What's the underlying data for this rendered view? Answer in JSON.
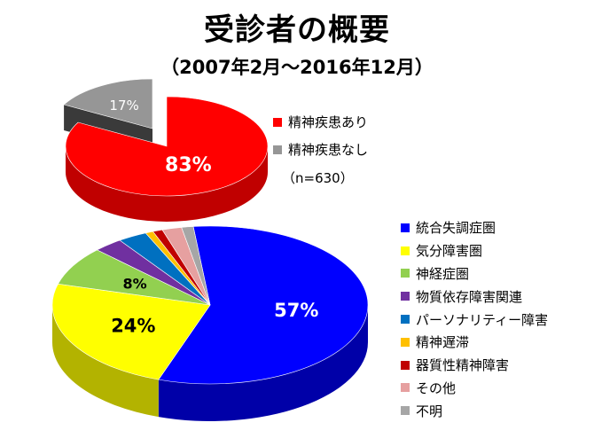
{
  "title": "受診者の概要",
  "subtitle": "（2007年2月～2016年12月）",
  "note": "（n=630）",
  "chart_data": [
    {
      "type": "pie",
      "style": "3d-exploded",
      "legend_position": "right",
      "slices": [
        {
          "label": "精神疾患あり",
          "value": 83,
          "display": "83%",
          "color": "#ff0000",
          "side": "#c00000",
          "label_color": "#ffffff"
        },
        {
          "label": "精神疾患なし",
          "value": 17,
          "display": "17%",
          "color": "#969696",
          "side": "#3a3a3a",
          "label_color": "#ffffff"
        }
      ]
    },
    {
      "type": "pie",
      "style": "3d",
      "legend_position": "right",
      "slices": [
        {
          "label": "統合失調症圏",
          "value": 57,
          "display": "57%",
          "color": "#0000ff",
          "side": "#0000a8",
          "label_color": "#ffffff"
        },
        {
          "label": "気分障害圏",
          "value": 24,
          "display": "24%",
          "color": "#ffff00",
          "side": "#b3b300",
          "label_color": "#000000"
        },
        {
          "label": "神経症圏",
          "value": 8,
          "display": "8%",
          "color": "#92d050",
          "side": "#5e8f2e",
          "label_color": "#000000"
        },
        {
          "label": "物質依存障害関連",
          "value": 3,
          "display": "",
          "color": "#7030a0",
          "side": "#471d66",
          "label_color": "#000000"
        },
        {
          "label": "パーソナリティー障害",
          "value": 3,
          "display": "",
          "color": "#0070c0",
          "side": "#004a80",
          "label_color": "#000000"
        },
        {
          "label": "精神遅滞",
          "value": 0.8,
          "display": "",
          "color": "#ffc000",
          "side": "#b38600",
          "label_color": "#000000"
        },
        {
          "label": "器質性精神障害",
          "value": 1,
          "display": "",
          "color": "#c00000",
          "side": "#800000",
          "label_color": "#000000"
        },
        {
          "label": "その他",
          "value": 2,
          "display": "",
          "color": "#e6a0a0",
          "side": "#a86a6a",
          "label_color": "#000000"
        },
        {
          "label": "不明",
          "value": 1.2,
          "display": "",
          "color": "#a6a6a6",
          "side": "#6e6e6e",
          "label_color": "#000000"
        }
      ]
    }
  ]
}
